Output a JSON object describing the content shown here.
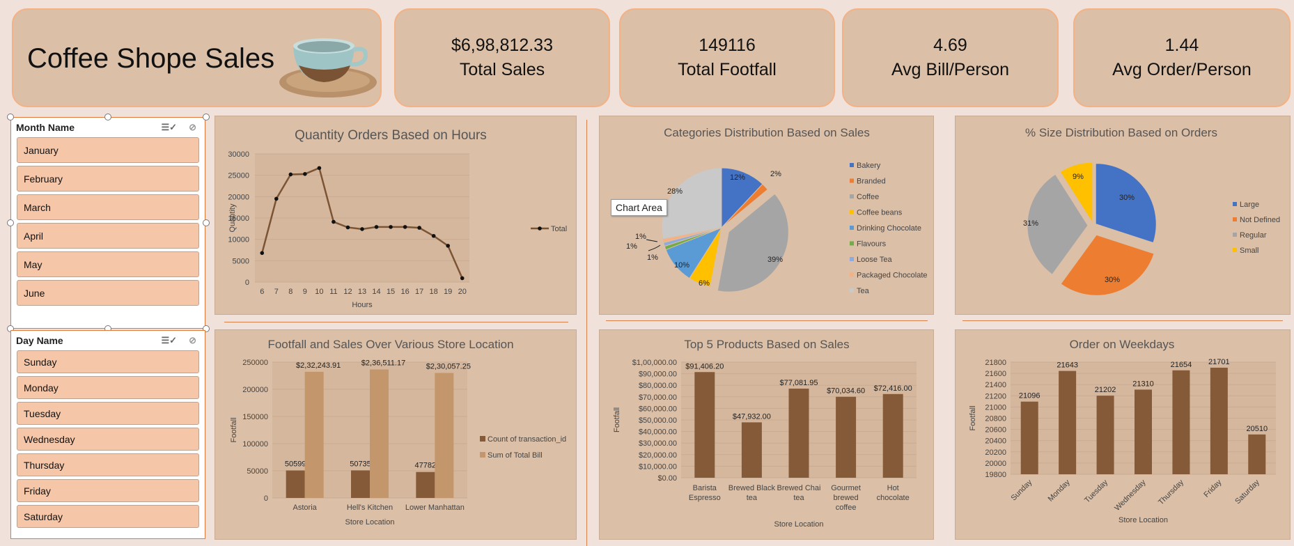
{
  "header": {
    "title": "Coffee Shope Sales",
    "kpis": [
      {
        "value": "$6,98,812.33",
        "label": "Total Sales"
      },
      {
        "value": "149116",
        "label": "Total Footfall"
      },
      {
        "value": "4.69",
        "label": "Avg Bill/Person"
      },
      {
        "value": "1.44",
        "label": "Avg Order/Person"
      }
    ]
  },
  "slicers": {
    "month": {
      "title": "Month Name",
      "items": [
        "January",
        "February",
        "March",
        "April",
        "May",
        "June"
      ]
    },
    "day": {
      "title": "Day Name",
      "items": [
        "Sunday",
        "Monday",
        "Tuesday",
        "Wednesday",
        "Thursday",
        "Friday",
        "Saturday"
      ]
    }
  },
  "tooltip": "Chart Area",
  "colors": {
    "brown": "#855a38",
    "tan": "#c4966b",
    "panel": "#dbbfa7"
  },
  "chart_data": [
    {
      "type": "line",
      "title": "Quantity Orders Based on Hours",
      "xlabel": "Hours",
      "ylabel": "Quantity",
      "x": [
        6,
        7,
        8,
        9,
        10,
        11,
        12,
        13,
        14,
        15,
        16,
        17,
        18,
        19,
        20
      ],
      "series": [
        {
          "name": "Total",
          "values": [
            6800,
            19500,
            25200,
            25300,
            26700,
            14100,
            12800,
            12400,
            12900,
            12900,
            12900,
            12700,
            10800,
            8500,
            900
          ]
        }
      ],
      "yticks": [
        0,
        5000,
        10000,
        15000,
        20000,
        25000,
        30000
      ],
      "ylim": [
        0,
        30000
      ],
      "legend": "right"
    },
    {
      "type": "pie",
      "title": "Categories Distribution Based on Sales",
      "labels": [
        "Bakery",
        "Branded",
        "Coffee",
        "Coffee beans",
        "Drinking Chocolate",
        "Flavours",
        "Loose Tea",
        "Packaged Chocolate",
        "Tea"
      ],
      "values": [
        12,
        2,
        39,
        6,
        10,
        1,
        1,
        1,
        28
      ],
      "label_text": [
        "12%",
        "2%",
        "39%",
        "6%",
        "10%",
        "1%",
        "1%",
        "1%",
        "28%"
      ],
      "colors": [
        "#4472c4",
        "#ed7d31",
        "#a5a5a5",
        "#ffc000",
        "#5b9bd5",
        "#70ad47",
        "#8faadc",
        "#f4b183",
        "#c9c9c9"
      ],
      "legend": "right"
    },
    {
      "type": "pie",
      "title": "% Size Distribution Based on Orders",
      "labels": [
        "Large",
        "Not Defined",
        "Regular",
        "Small"
      ],
      "values": [
        30,
        30,
        31,
        9
      ],
      "label_text": [
        "30%",
        "30%",
        "31%",
        "9%"
      ],
      "colors": [
        "#4472c4",
        "#ed7d31",
        "#a5a5a5",
        "#ffc000"
      ],
      "legend": "right"
    },
    {
      "type": "bar",
      "title": "Footfall  and Sales Over Various Store Location",
      "xlabel": "Store Location",
      "ylabel": "Footfall",
      "categories": [
        "Astoria",
        "Hell's Kitchen",
        "Lower Manhattan"
      ],
      "series": [
        {
          "name": "Count of transaction_id",
          "values": [
            50599,
            50735,
            47782
          ],
          "labels": [
            "50599",
            "50735",
            "47782"
          ]
        },
        {
          "name": "Sum of Total Bill",
          "values": [
            232243.91,
            236511.17,
            230057.25
          ],
          "labels": [
            "$2,32,243.91",
            "$2,36,511.17",
            "$2,30,057.25"
          ]
        }
      ],
      "yticks": [
        0,
        50000,
        100000,
        150000,
        200000,
        250000
      ],
      "ylim": [
        0,
        250000
      ],
      "legend": "right"
    },
    {
      "type": "bar",
      "title": "Top 5 Products Based on Sales",
      "xlabel": "Store Location",
      "ylabel": "Footfall",
      "categories": [
        [
          "Barista",
          "Espresso"
        ],
        [
          "Brewed Black",
          "tea"
        ],
        [
          "Brewed Chai",
          "tea"
        ],
        [
          "Gourmet",
          "brewed",
          "coffee"
        ],
        [
          "Hot",
          "chocolate"
        ]
      ],
      "values": [
        91406.2,
        47932.0,
        77081.95,
        70034.6,
        72416.0
      ],
      "labels": [
        "$91,406.20",
        "$47,932.00",
        "$77,081.95",
        "$70,034.60",
        "$72,416.00"
      ],
      "yticks": [
        "$0.00",
        "$10,000.00",
        "$20,000.00",
        "$30,000.00",
        "$40,000.00",
        "$50,000.00",
        "$60,000.00",
        "$70,000.00",
        "$80,000.00",
        "$90,000.00",
        "$1,00,000.00"
      ],
      "ylim": [
        0,
        100000
      ]
    },
    {
      "type": "bar",
      "title": "Order on Weekdays",
      "xlabel": "Store Location",
      "ylabel": "Footfall",
      "categories": [
        "Sunday",
        "Monday",
        "Tuesday",
        "Wednesday",
        "Thursday",
        "Friday",
        "Saturday"
      ],
      "values": [
        21096,
        21643,
        21202,
        21310,
        21654,
        21701,
        20510
      ],
      "yticks": [
        19800,
        20000,
        20200,
        20400,
        20600,
        20800,
        21000,
        21200,
        21400,
        21600,
        21800
      ],
      "ylim": [
        19800,
        21800
      ]
    }
  ]
}
